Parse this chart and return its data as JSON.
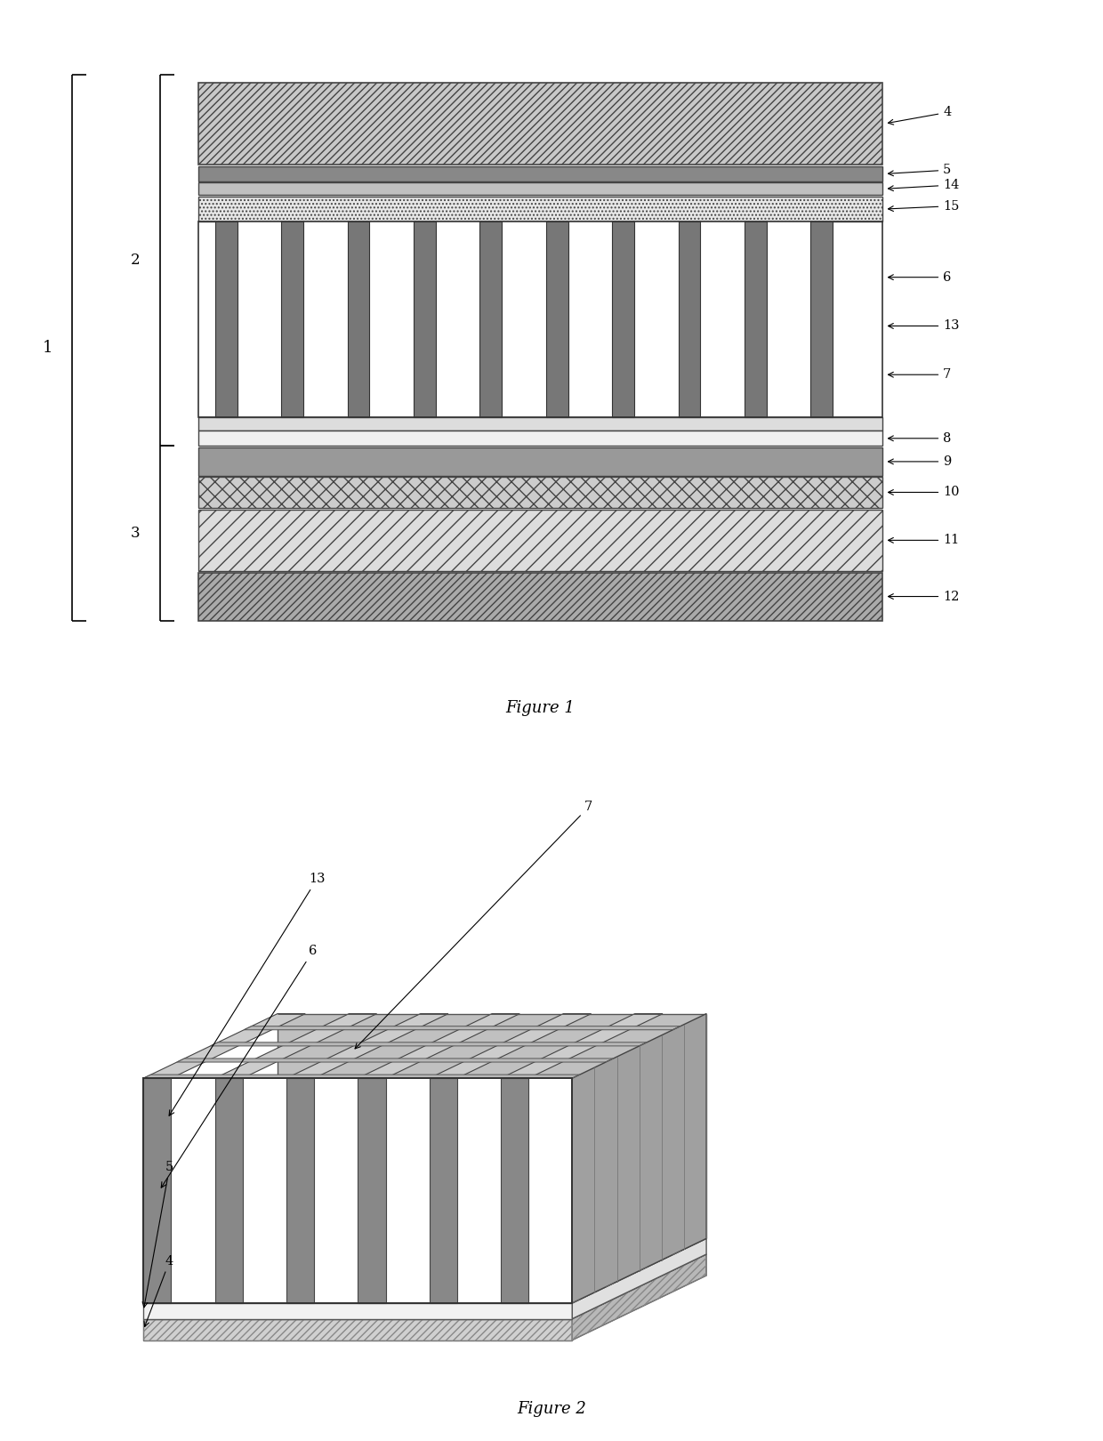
{
  "fig1_title": "Figure 1",
  "fig2_title": "Figure 2",
  "background_color": "#ffffff",
  "label_color": "#000000",
  "figure_size": [
    12.4,
    16.2
  ],
  "dpi": 100
}
